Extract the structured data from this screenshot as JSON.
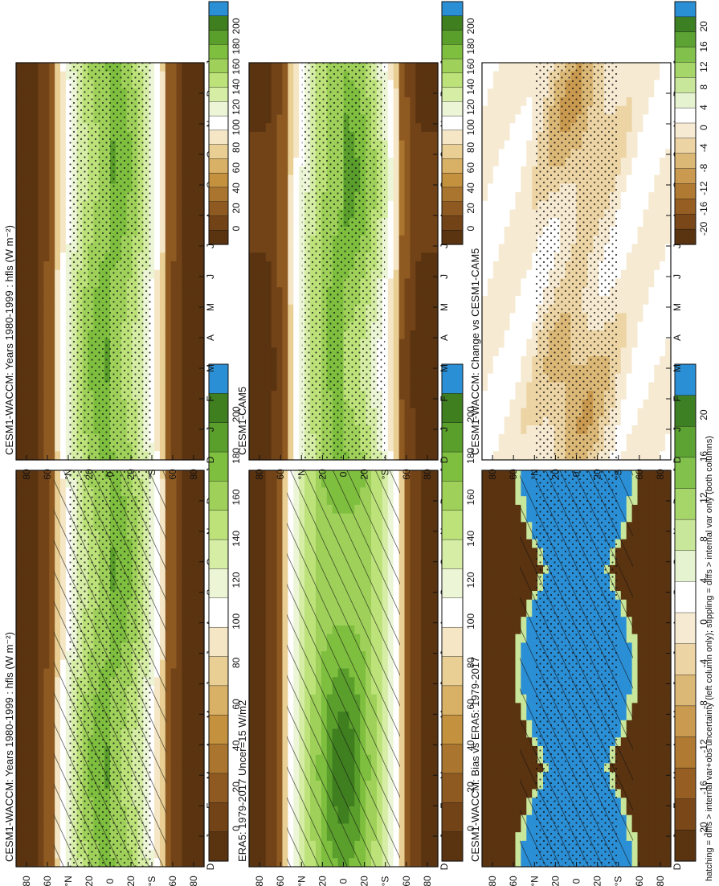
{
  "footnote": "hatching = diffs > internal var+obs uncertainty (left column only); stippling = diffs > internal var only (both columns)",
  "months": [
    "D",
    "J",
    "F",
    "M",
    "A",
    "M",
    "J",
    "J",
    "A",
    "S",
    "O",
    "N",
    "D",
    "J"
  ],
  "lat_ticks": [
    "80",
    "60",
    "°N",
    "20",
    "0",
    "20",
    "°S",
    "60",
    "80"
  ],
  "colors": {
    "abs": [
      "#5a3310",
      "#734318",
      "#8e5a22",
      "#a9752f",
      "#c4923f",
      "#d9b166",
      "#e9cf94",
      "#f5e7c6",
      "#ffffff",
      "#ecf6d6",
      "#d6eda6",
      "#bde27a",
      "#9fd15a",
      "#7fbf3f",
      "#5a9e2c",
      "#3f7f1f",
      "#2b8fd6"
    ],
    "diff": [
      "#5a3310",
      "#7a4718",
      "#965e22",
      "#b07a33",
      "#c99a4f",
      "#dcb877",
      "#ecd4a4",
      "#f6ead2",
      "#ffffff",
      "#e6f3d0",
      "#c9e79a",
      "#a6d66a",
      "#82c24c",
      "#5da334",
      "#3d8024",
      "#2b8fd6"
    ]
  },
  "chart_data": [
    {
      "type": "heatmap",
      "title": "CESM1-WACCM: Years 1980-1999 : hfls (W m⁻²)",
      "colorbar_ticks": [
        "200",
        "180",
        "160",
        "140",
        "120",
        "100",
        "80",
        "60",
        "40",
        "20",
        "0"
      ],
      "field": "abs_waccm",
      "overlay": "hatch+stipple",
      "x": "month (Dec–Jan)",
      "y": "latitude 90S–90N"
    },
    {
      "type": "heatmap",
      "title": "CESM1-WACCM: Years 1980-1999 : hfls (W m⁻²)",
      "colorbar_ticks": [
        "200",
        "180",
        "160",
        "140",
        "120",
        "100",
        "80",
        "60",
        "40",
        "20",
        "0"
      ],
      "field": "abs_waccm",
      "overlay": "stipple"
    },
    {
      "type": "heatmap",
      "title": "ERA5: 1979-2017 Uncer=15 W/m2",
      "colorbar_ticks": [
        "200",
        "180",
        "160",
        "140",
        "120",
        "100",
        "80",
        "60",
        "40",
        "20",
        "0"
      ],
      "field": "abs_era5",
      "overlay": "hatch"
    },
    {
      "type": "heatmap",
      "title": "CESM1-CAM5",
      "colorbar_ticks": [
        "200",
        "180",
        "160",
        "140",
        "120",
        "100",
        "80",
        "60",
        "40",
        "20",
        "0"
      ],
      "field": "abs_cam5",
      "overlay": "stipple"
    },
    {
      "type": "heatmap",
      "title": "CESM1-WACCM: Bias vs ERA5: 1979-2017",
      "colorbar_ticks": [
        "20",
        "16",
        "12",
        "8",
        "4",
        "0",
        "-4",
        "-8",
        "-12",
        "-16",
        "-20"
      ],
      "field": "bias",
      "overlay": "hatch+stipple"
    },
    {
      "type": "heatmap",
      "title": "CESM1-WACCM: Change vs CESM1-CAM5",
      "colorbar_ticks": [
        "20",
        "16",
        "12",
        "8",
        "4",
        "0",
        "-4",
        "-8",
        "-12",
        "-16",
        "-20"
      ],
      "field": "change",
      "overlay": "stipple"
    }
  ]
}
